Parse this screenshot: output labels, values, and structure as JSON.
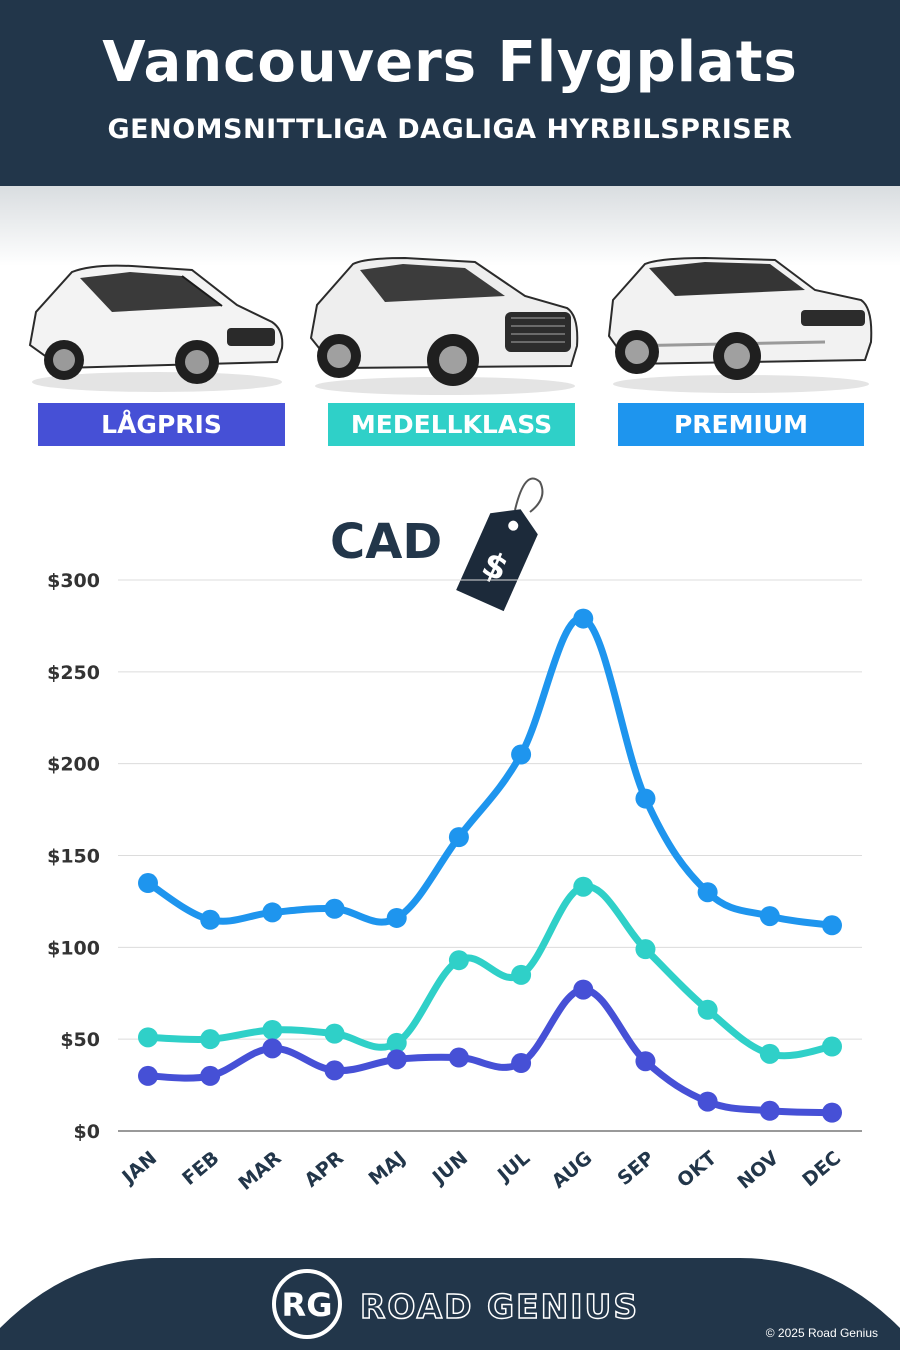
{
  "header": {
    "title": "Vancouvers Flygplats",
    "subtitle": "GENOMSNITTLIGA DAGLIGA HYRBILSPRISER"
  },
  "categories": [
    {
      "label": "LÅGPRIS",
      "color": "#4650d6"
    },
    {
      "label": "MEDELLKLASS",
      "color": "#2fd0c8"
    },
    {
      "label": "PREMIUM",
      "color": "#1e95ee"
    }
  ],
  "currency_tag": {
    "text": "CAD",
    "symbol": "$"
  },
  "chart_data": {
    "type": "line",
    "categories": [
      "JAN",
      "FEB",
      "MAR",
      "APR",
      "MAJ",
      "JUN",
      "JUL",
      "AUG",
      "SEP",
      "OKT",
      "NOV",
      "DEC"
    ],
    "series": [
      {
        "name": "PREMIUM",
        "color": "#1e95ee",
        "values": [
          135,
          115,
          119,
          121,
          116,
          160,
          205,
          279,
          181,
          130,
          117,
          112
        ]
      },
      {
        "name": "MEDELLKLASS",
        "color": "#2fd0c8",
        "values": [
          51,
          50,
          55,
          53,
          48,
          93,
          85,
          133,
          99,
          66,
          42,
          46
        ]
      },
      {
        "name": "LÅGPRIS",
        "color": "#4650d6",
        "values": [
          30,
          30,
          45,
          33,
          39,
          40,
          37,
          77,
          38,
          16,
          11,
          10
        ]
      }
    ],
    "yticks": [
      "$0",
      "$50",
      "$100",
      "$150",
      "$200",
      "$250",
      "$300"
    ],
    "ylim": [
      0,
      300
    ],
    "grid": true
  },
  "footer": {
    "logo_initials": "RG",
    "brand": "ROAD GENIUS",
    "copyright": "© 2025 Road Genius",
    "color": "#22364a"
  }
}
